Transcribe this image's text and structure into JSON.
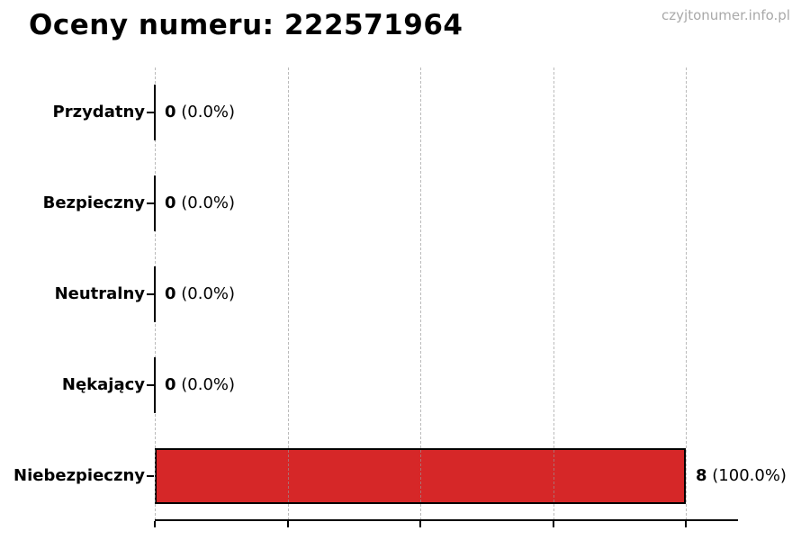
{
  "header": {
    "title": "Oceny numeru: 222571964",
    "watermark": "czyjtonumer.info.pl"
  },
  "chart_data": {
    "type": "bar",
    "orientation": "horizontal",
    "title": "Oceny numeru: 222571964",
    "categories": [
      "Przydatny",
      "Bezpieczny",
      "Neutralny",
      "Nękający",
      "Niebezpieczny"
    ],
    "values": [
      0,
      0,
      0,
      0,
      8
    ],
    "count_labels": [
      "0",
      "0",
      "0",
      "0",
      "8"
    ],
    "percent_labels": [
      "(0.0%)",
      "(0.0%)",
      "(0.0%)",
      "(0.0%)",
      "(100.0%)"
    ],
    "total_ratings": 8,
    "xlim": [
      0,
      8.8
    ],
    "x_ticks": [
      0,
      2,
      4,
      6,
      8
    ],
    "grid": "vertical-dashed",
    "legend": "none",
    "bar_color": "#d62728",
    "bar_edge_color": "#000000",
    "gridline_color": "#bfbfbf",
    "watermark_color": "#a9a9a9"
  }
}
